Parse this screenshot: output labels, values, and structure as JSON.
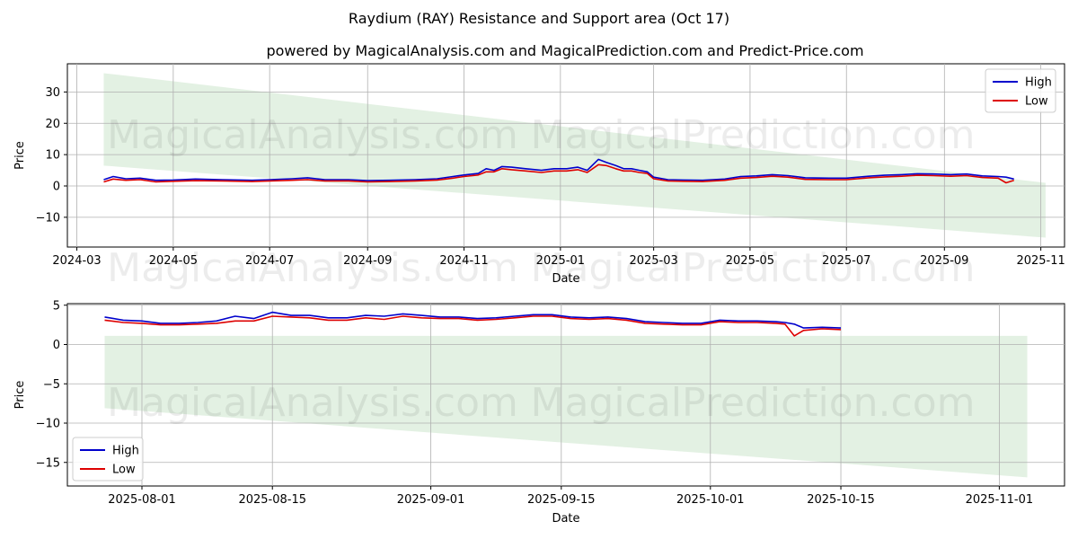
{
  "title": "Raydium (RAY) Resistance and Support area (Oct 17)",
  "subtitle": "powered by MagicalAnalysis.com and MagicalPrediction.com and Predict-Price.com",
  "watermarks": [
    "MagicalAnalysis.com",
    "MagicalPrediction.com"
  ],
  "colors": {
    "high": "#0000cc",
    "low": "#dd0000",
    "band": "#d9ecd9",
    "grid": "#b0b0b0"
  },
  "chart_data": [
    {
      "type": "line",
      "xlabel": "Date",
      "ylabel": "Price",
      "xlim": [
        "2024-02-24",
        "2025-11-16"
      ],
      "ylim": [
        -19.5,
        39
      ],
      "grid": true,
      "legend": "top-right",
      "xticks": [
        "2024-03",
        "2024-05",
        "2024-07",
        "2024-09",
        "2024-11",
        "2025-01",
        "2025-03",
        "2025-05",
        "2025-07",
        "2025-09",
        "2025-11"
      ],
      "yticks": [
        -10,
        0,
        10,
        20,
        30
      ],
      "band": {
        "x": [
          "2024-03-18",
          "2025-11-04"
        ],
        "upper": [
          36,
          1.0
        ],
        "lower": [
          6.5,
          -16.5
        ]
      },
      "series": [
        {
          "name": "High",
          "x": [
            "2024-03-18",
            "2024-03-24",
            "2024-04-01",
            "2024-04-10",
            "2024-04-20",
            "2024-05-01",
            "2024-05-15",
            "2024-06-01",
            "2024-06-20",
            "2024-07-01",
            "2024-07-15",
            "2024-07-25",
            "2024-08-05",
            "2024-08-20",
            "2024-09-01",
            "2024-09-15",
            "2024-10-01",
            "2024-10-15",
            "2024-10-25",
            "2024-11-01",
            "2024-11-10",
            "2024-11-15",
            "2024-11-20",
            "2024-11-25",
            "2024-12-01",
            "2024-12-10",
            "2024-12-20",
            "2024-12-28",
            "2025-01-05",
            "2025-01-12",
            "2025-01-18",
            "2025-01-25",
            "2025-01-30",
            "2025-02-05",
            "2025-02-10",
            "2025-02-15",
            "2025-02-20",
            "2025-02-25",
            "2025-03-01",
            "2025-03-10",
            "2025-03-20",
            "2025-04-01",
            "2025-04-15",
            "2025-04-25",
            "2025-05-05",
            "2025-05-15",
            "2025-05-25",
            "2025-06-05",
            "2025-06-20",
            "2025-07-01",
            "2025-07-15",
            "2025-07-25",
            "2025-08-05",
            "2025-08-15",
            "2025-08-25",
            "2025-09-05",
            "2025-09-15",
            "2025-09-25",
            "2025-10-05",
            "2025-10-10",
            "2025-10-15"
          ],
          "values": [
            2.0,
            3.0,
            2.3,
            2.5,
            1.8,
            1.9,
            2.2,
            2.0,
            1.8,
            2.0,
            2.3,
            2.6,
            2.0,
            2.0,
            1.7,
            1.8,
            2.0,
            2.3,
            3.0,
            3.5,
            4.0,
            5.5,
            5.0,
            6.2,
            6.0,
            5.5,
            5.0,
            5.5,
            5.5,
            6.0,
            5.0,
            8.5,
            7.5,
            6.5,
            5.5,
            5.5,
            5.0,
            4.5,
            2.8,
            2.0,
            1.9,
            1.8,
            2.2,
            3.0,
            3.2,
            3.6,
            3.3,
            2.6,
            2.5,
            2.5,
            3.1,
            3.4,
            3.6,
            3.9,
            3.8,
            3.6,
            3.8,
            3.2,
            3.0,
            2.8,
            2.2
          ]
        },
        {
          "name": "Low",
          "x": [
            "2024-03-18",
            "2024-03-24",
            "2024-04-01",
            "2024-04-10",
            "2024-04-20",
            "2024-05-01",
            "2024-05-15",
            "2024-06-01",
            "2024-06-20",
            "2024-07-01",
            "2024-07-15",
            "2024-07-25",
            "2024-08-05",
            "2024-08-20",
            "2024-09-01",
            "2024-09-15",
            "2024-10-01",
            "2024-10-15",
            "2024-10-25",
            "2024-11-01",
            "2024-11-10",
            "2024-11-15",
            "2024-11-20",
            "2024-11-25",
            "2024-12-01",
            "2024-12-10",
            "2024-12-20",
            "2024-12-28",
            "2025-01-05",
            "2025-01-12",
            "2025-01-18",
            "2025-01-25",
            "2025-01-30",
            "2025-02-05",
            "2025-02-10",
            "2025-02-15",
            "2025-02-20",
            "2025-02-25",
            "2025-03-01",
            "2025-03-10",
            "2025-03-20",
            "2025-04-01",
            "2025-04-15",
            "2025-04-25",
            "2025-05-05",
            "2025-05-15",
            "2025-05-25",
            "2025-06-05",
            "2025-06-20",
            "2025-07-01",
            "2025-07-15",
            "2025-07-25",
            "2025-08-05",
            "2025-08-15",
            "2025-08-25",
            "2025-09-05",
            "2025-09-15",
            "2025-09-25",
            "2025-10-05",
            "2025-10-10",
            "2025-10-15"
          ],
          "values": [
            1.3,
            2.2,
            1.8,
            2.0,
            1.3,
            1.5,
            1.7,
            1.6,
            1.4,
            1.6,
            1.8,
            2.0,
            1.6,
            1.6,
            1.3,
            1.4,
            1.6,
            1.9,
            2.5,
            3.0,
            3.5,
            4.5,
            4.5,
            5.5,
            5.2,
            4.8,
            4.3,
            4.8,
            4.8,
            5.2,
            4.3,
            6.8,
            6.5,
            5.5,
            4.8,
            4.8,
            4.3,
            4.0,
            2.3,
            1.6,
            1.5,
            1.4,
            1.8,
            2.5,
            2.7,
            3.1,
            2.8,
            2.1,
            2.0,
            2.0,
            2.6,
            2.9,
            3.1,
            3.4,
            3.3,
            3.1,
            3.3,
            2.7,
            2.5,
            1.0,
            1.8
          ]
        }
      ]
    },
    {
      "type": "line",
      "xlabel": "Date",
      "ylabel": "Price",
      "xlim": [
        "2025-07-24",
        "2025-11-08"
      ],
      "ylim": [
        -18,
        5.2
      ],
      "grid": true,
      "legend": "bottom-left",
      "xticks": [
        "2025-08-01",
        "2025-08-15",
        "2025-09-01",
        "2025-09-15",
        "2025-10-01",
        "2025-10-15",
        "2025-11-01"
      ],
      "yticks": [
        -15,
        -10,
        -5,
        0,
        5
      ],
      "band": {
        "x": [
          "2025-07-28",
          "2025-11-04"
        ],
        "upper": [
          1.1,
          1.1
        ],
        "lower": [
          -8.1,
          -16.9
        ]
      },
      "series": [
        {
          "name": "High",
          "x": [
            "2025-07-28",
            "2025-07-30",
            "2025-08-01",
            "2025-08-03",
            "2025-08-05",
            "2025-08-07",
            "2025-08-09",
            "2025-08-11",
            "2025-08-13",
            "2025-08-15",
            "2025-08-17",
            "2025-08-19",
            "2025-08-21",
            "2025-08-23",
            "2025-08-25",
            "2025-08-27",
            "2025-08-29",
            "2025-08-31",
            "2025-09-02",
            "2025-09-04",
            "2025-09-06",
            "2025-09-08",
            "2025-09-10",
            "2025-09-12",
            "2025-09-14",
            "2025-09-16",
            "2025-09-18",
            "2025-09-20",
            "2025-09-22",
            "2025-09-24",
            "2025-09-26",
            "2025-09-28",
            "2025-09-30",
            "2025-10-02",
            "2025-10-04",
            "2025-10-06",
            "2025-10-08",
            "2025-10-09",
            "2025-10-10",
            "2025-10-11",
            "2025-10-13",
            "2025-10-15"
          ],
          "values": [
            3.5,
            3.1,
            3.0,
            2.7,
            2.7,
            2.8,
            3.0,
            3.6,
            3.3,
            4.1,
            3.7,
            3.7,
            3.4,
            3.4,
            3.7,
            3.6,
            3.9,
            3.7,
            3.5,
            3.5,
            3.3,
            3.4,
            3.6,
            3.8,
            3.8,
            3.5,
            3.4,
            3.5,
            3.3,
            2.9,
            2.8,
            2.7,
            2.7,
            3.1,
            3.0,
            3.0,
            2.9,
            2.8,
            2.6,
            2.1,
            2.2,
            2.1
          ]
        },
        {
          "name": "Low",
          "x": [
            "2025-07-28",
            "2025-07-30",
            "2025-08-01",
            "2025-08-03",
            "2025-08-05",
            "2025-08-07",
            "2025-08-09",
            "2025-08-11",
            "2025-08-13",
            "2025-08-15",
            "2025-08-17",
            "2025-08-19",
            "2025-08-21",
            "2025-08-23",
            "2025-08-25",
            "2025-08-27",
            "2025-08-29",
            "2025-08-31",
            "2025-09-02",
            "2025-09-04",
            "2025-09-06",
            "2025-09-08",
            "2025-09-10",
            "2025-09-12",
            "2025-09-14",
            "2025-09-16",
            "2025-09-18",
            "2025-09-20",
            "2025-09-22",
            "2025-09-24",
            "2025-09-26",
            "2025-09-28",
            "2025-09-30",
            "2025-10-02",
            "2025-10-04",
            "2025-10-06",
            "2025-10-08",
            "2025-10-09",
            "2025-10-10",
            "2025-10-11",
            "2025-10-13",
            "2025-10-15"
          ],
          "values": [
            3.1,
            2.8,
            2.7,
            2.5,
            2.5,
            2.6,
            2.7,
            3.0,
            3.0,
            3.6,
            3.5,
            3.4,
            3.1,
            3.1,
            3.4,
            3.2,
            3.6,
            3.4,
            3.3,
            3.3,
            3.1,
            3.2,
            3.4,
            3.6,
            3.6,
            3.3,
            3.2,
            3.3,
            3.1,
            2.7,
            2.6,
            2.5,
            2.5,
            2.9,
            2.8,
            2.8,
            2.7,
            2.6,
            1.1,
            1.8,
            2.0,
            1.9
          ]
        }
      ]
    }
  ]
}
